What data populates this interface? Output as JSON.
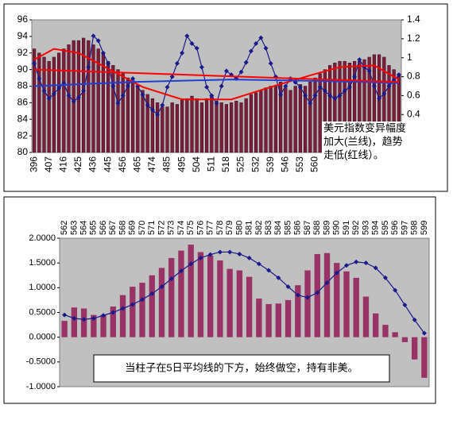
{
  "chart_data": [
    {
      "type": "bar",
      "categories": [
        "396",
        null,
        null,
        "407",
        null,
        null,
        "416",
        null,
        null,
        "425",
        null,
        null,
        "436",
        null,
        null,
        "445",
        null,
        null,
        "456",
        null,
        null,
        "465",
        null,
        null,
        "474",
        null,
        null,
        "485",
        null,
        null,
        "495",
        null,
        null,
        "504",
        null,
        null,
        "511",
        null,
        null,
        "518",
        null,
        null,
        "525",
        null,
        null,
        "532",
        null,
        null,
        "539",
        null,
        null,
        "546",
        null,
        null,
        "553",
        null,
        null,
        "560",
        null,
        null,
        null,
        null,
        null,
        null,
        null,
        null,
        null,
        null,
        null,
        null,
        null,
        null,
        null,
        null,
        null
      ],
      "series": [
        {
          "kind": "bar",
          "color": "#7a1e3c",
          "values": [
            92.5,
            92,
            91.5,
            91,
            91.5,
            92,
            92.5,
            93,
            93.5,
            93.5,
            93.8,
            93.5,
            93,
            92.5,
            92,
            91,
            90.5,
            90,
            89.5,
            89,
            88.5,
            88,
            87.5,
            87,
            86.5,
            86,
            85.5,
            85.5,
            86,
            85.8,
            86.5,
            86.5,
            86.8,
            86.5,
            86,
            86.5,
            86.8,
            86.2,
            86,
            85.8,
            86,
            86.2,
            86,
            86.5,
            87,
            87.2,
            87.5,
            87.8,
            88,
            88,
            88.5,
            87.8,
            87.5,
            88,
            88.2,
            88,
            88.5,
            89,
            89.5,
            90,
            90.5,
            90.8,
            91,
            91,
            90.8,
            91,
            91,
            91.2,
            91.5,
            91.8,
            91.8,
            91.5,
            90.5,
            90,
            89.5
          ]
        },
        {
          "kind": "line",
          "axis": "y2",
          "markers": true,
          "color": "#1a1a8c",
          "values": [
            0.94,
            0.78,
            0.65,
            0.57,
            0.62,
            0.68,
            0.73,
            0.6,
            0.54,
            0.58,
            0.65,
            0.9,
            1.23,
            1.18,
            1.05,
            0.94,
            0.7,
            0.52,
            0.6,
            0.7,
            0.78,
            0.7,
            0.61,
            0.5,
            0.45,
            0.4,
            0.5,
            0.69,
            0.8,
            0.94,
            1.05,
            1.23,
            1.15,
            1.1,
            0.9,
            0.69,
            0.6,
            0.52,
            0.7,
            0.86,
            0.82,
            0.78,
            0.85,
            0.95,
            1.07,
            1.15,
            1.21,
            1.1,
            0.94,
            0.8,
            0.61,
            0.7,
            0.78,
            0.74,
            0.69,
            0.6,
            0.52,
            0.6,
            0.69,
            0.65,
            0.6,
            0.57,
            0.6,
            0.65,
            0.69,
            0.8,
            0.98,
            0.9,
            0.86,
            0.7,
            0.57,
            0.62,
            0.7,
            0.76,
            0.82
          ]
        },
        {
          "kind": "line",
          "color": "#ff0000",
          "x": [
            0,
            4,
            9,
            16,
            22,
            30,
            40,
            48,
            56,
            62,
            69,
            74
          ],
          "values": [
            91.2,
            92.5,
            92,
            89.8,
            87.9,
            86.4,
            86.4,
            87.9,
            89.3,
            90.3,
            90.5,
            88.8
          ]
        },
        {
          "kind": "line",
          "color": "#1f3fd0",
          "x": [
            0,
            20,
            40,
            60,
            74
          ],
          "values": [
            88,
            88.5,
            88.8,
            88.6,
            88.4
          ]
        },
        {
          "kind": "line",
          "color": "#ff0000",
          "x": [
            0,
            74
          ],
          "values": [
            90,
            88.5
          ]
        }
      ],
      "ylim": [
        80,
        96
      ],
      "yticks": [
        80,
        82,
        84,
        86,
        88,
        90,
        92,
        94,
        96
      ],
      "y2lim": [
        0,
        1.4
      ],
      "y2ticks": [
        0.4,
        0.6,
        0.8,
        1,
        1.2,
        1.4
      ],
      "annotation": [
        "美元指数变异幅度",
        "加大(兰线)，趋势",
        "走低(红线）。"
      ]
    },
    {
      "type": "bar",
      "categories": [
        "562",
        "563",
        "564",
        "565",
        "566",
        "567",
        "568",
        "569",
        "570",
        "571",
        "572",
        "573",
        "574",
        "575",
        "576",
        "577",
        "578",
        "579",
        "580",
        "581",
        "582",
        "583",
        "584",
        "585",
        "586",
        "587",
        "588",
        "589",
        "590",
        "591",
        "592",
        "593",
        "594",
        "595",
        "596",
        "597",
        "598",
        "599"
      ],
      "series": [
        {
          "kind": "bar",
          "color": "#993366",
          "values": [
            0.33,
            0.6,
            0.58,
            0.45,
            0.45,
            0.62,
            0.85,
            1.02,
            1.1,
            1.25,
            1.4,
            1.6,
            1.75,
            1.87,
            1.72,
            1.65,
            1.55,
            1.38,
            1.35,
            1.22,
            0.78,
            0.67,
            0.68,
            0.75,
            1.05,
            1.35,
            1.68,
            1.7,
            1.5,
            1.33,
            1.2,
            0.82,
            0.48,
            0.25,
            0.1,
            -0.1,
            -0.45,
            -0.82
          ]
        },
        {
          "kind": "line",
          "markers": true,
          "color": "#1a1a8c",
          "values": [
            0.45,
            0.38,
            0.36,
            0.38,
            0.44,
            0.5,
            0.58,
            0.66,
            0.76,
            0.88,
            1.02,
            1.18,
            1.34,
            1.48,
            1.6,
            1.67,
            1.72,
            1.72,
            1.68,
            1.6,
            1.48,
            1.35,
            1.2,
            1.02,
            0.85,
            0.8,
            0.9,
            1.1,
            1.3,
            1.45,
            1.52,
            1.5,
            1.4,
            1.2,
            0.95,
            0.65,
            0.35,
            0.08
          ]
        }
      ],
      "ylim": [
        -1,
        2
      ],
      "yticks": [
        {
          "value": -1,
          "label": "-1.0000"
        },
        {
          "value": -0.5,
          "label": "-0.5000"
        },
        {
          "value": 0,
          "label": "0.0000"
        },
        {
          "value": 0.5,
          "label": "0.5000"
        },
        {
          "value": 1,
          "label": "1.0000"
        },
        {
          "value": 1.5,
          "label": "1.5000"
        },
        {
          "value": 2,
          "label": "2.0000"
        }
      ],
      "annotation": [
        "当柱子在5日平均线的下方，始终做空，持有非美。"
      ]
    }
  ]
}
